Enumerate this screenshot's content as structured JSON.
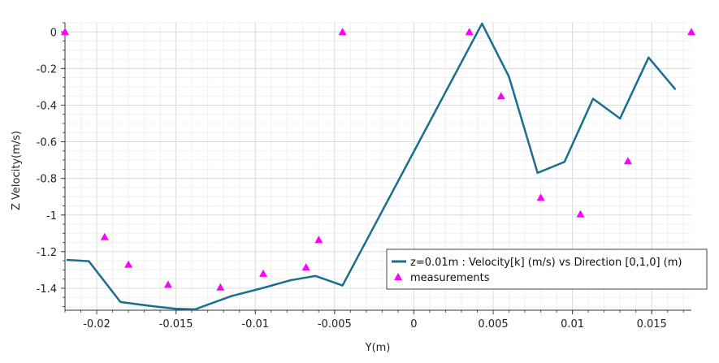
{
  "chart_data": {
    "type": "line",
    "title": "",
    "xlabel": "Y(m)",
    "ylabel": "Z Velocity(m/s)",
    "xlim": [
      -0.022,
      0.0175
    ],
    "ylim": [
      -1.52,
      0.05
    ],
    "x_ticks": [
      -0.02,
      -0.015,
      -0.01,
      -0.005,
      0,
      0.005,
      0.01,
      0.015
    ],
    "x_tick_labels": [
      "-0.02",
      "-0.015",
      "-0.01",
      "-0.005",
      "0",
      "0.005",
      "0.01",
      "0.015"
    ],
    "y_ticks": [
      0,
      -0.2,
      -0.4,
      -0.6,
      -0.8,
      -1,
      -1.2,
      -1.4
    ],
    "y_tick_labels": [
      "0",
      "-0.2",
      "-0.4",
      "-0.6",
      "-0.8",
      "-1",
      "-1.2",
      "-1.4"
    ],
    "grid": true,
    "legend_position": "bottom-right",
    "series": [
      {
        "name": "z=0.01m : Velocity[k] (m/s) vs Direction [0,1,0] (m)",
        "type": "line",
        "color": "#1a6e8e",
        "x": [
          -0.0219,
          -0.0205,
          -0.0185,
          -0.0165,
          -0.015,
          -0.0138,
          -0.0115,
          -0.0095,
          -0.0078,
          -0.0062,
          -0.0045,
          0.0043,
          0.006,
          0.0078,
          0.0095,
          0.0113,
          0.013,
          0.0148,
          0.0165
        ],
        "y": [
          -1.245,
          -1.252,
          -1.475,
          -1.498,
          -1.512,
          -1.515,
          -1.443,
          -1.398,
          -1.357,
          -1.333,
          -1.385,
          0.045,
          -0.245,
          -0.77,
          -0.71,
          -0.365,
          -0.473,
          -0.14,
          -0.315
        ]
      },
      {
        "name": "measurements",
        "type": "scatter",
        "marker": "triangle",
        "color": "#ff00ff",
        "x": [
          -0.022,
          -0.0195,
          -0.018,
          -0.0155,
          -0.0122,
          -0.0095,
          -0.0068,
          -0.006,
          -0.0045,
          0.0035,
          0.0055,
          0.008,
          0.0105,
          0.0135,
          0.0175
        ],
        "y": [
          0.0,
          -1.12,
          -1.27,
          -1.38,
          -1.395,
          -1.32,
          -1.285,
          -1.135,
          0.0,
          0.0,
          -0.35,
          -0.905,
          -0.995,
          -0.705,
          0.0
        ]
      }
    ]
  }
}
